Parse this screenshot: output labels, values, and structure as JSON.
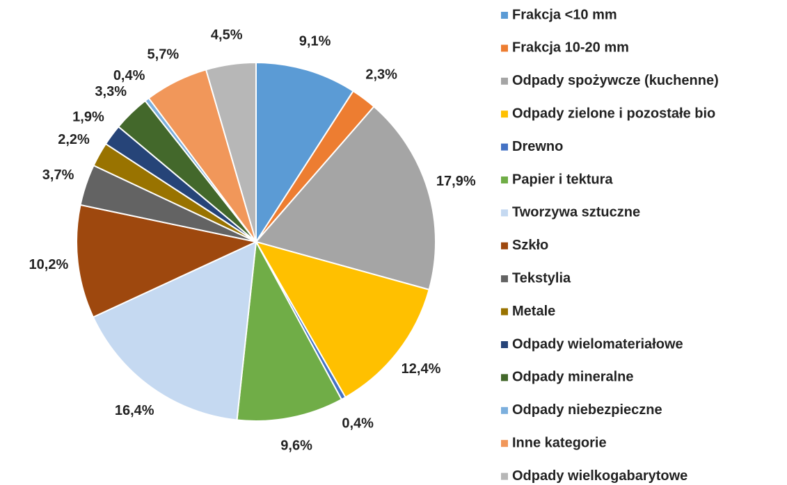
{
  "chart_data": {
    "type": "pie",
    "categories": [
      "Frakcja <10 mm",
      "Frakcja 10-20 mm",
      "Odpady spożywcze (kuchenne)",
      "Odpady zielone i pozostałe bio",
      "Drewno",
      "Papier i tektura",
      "Tworzywa sztuczne",
      "Szkło",
      "Tekstylia",
      "Metale",
      "Odpady wielomateriałowe",
      "Odpady mineralne",
      "Odpady niebezpieczne",
      "Inne kategorie",
      "Odpady wielkogabarytowe"
    ],
    "values": [
      9.1,
      2.3,
      17.9,
      12.4,
      0.4,
      9.6,
      16.4,
      10.2,
      3.7,
      2.2,
      1.9,
      3.3,
      0.4,
      5.7,
      4.5
    ],
    "value_labels": [
      "9,1%",
      "2,3%",
      "17,9%",
      "12,4%",
      "0,4%",
      "9,6%",
      "16,4%",
      "10,2%",
      "3,7%",
      "2,2%",
      "1,9%",
      "3,3%",
      "0,4%",
      "5,7%",
      "4,5%"
    ],
    "colors": [
      "#5b9bd5",
      "#ed7d31",
      "#a5a5a5",
      "#ffc000",
      "#4472c4",
      "#70ad47",
      "#c5d9f1",
      "#9e480e",
      "#636363",
      "#997300",
      "#264478",
      "#43682b",
      "#7cafdd",
      "#f1975a",
      "#b7b7b7"
    ],
    "legend": "right"
  }
}
